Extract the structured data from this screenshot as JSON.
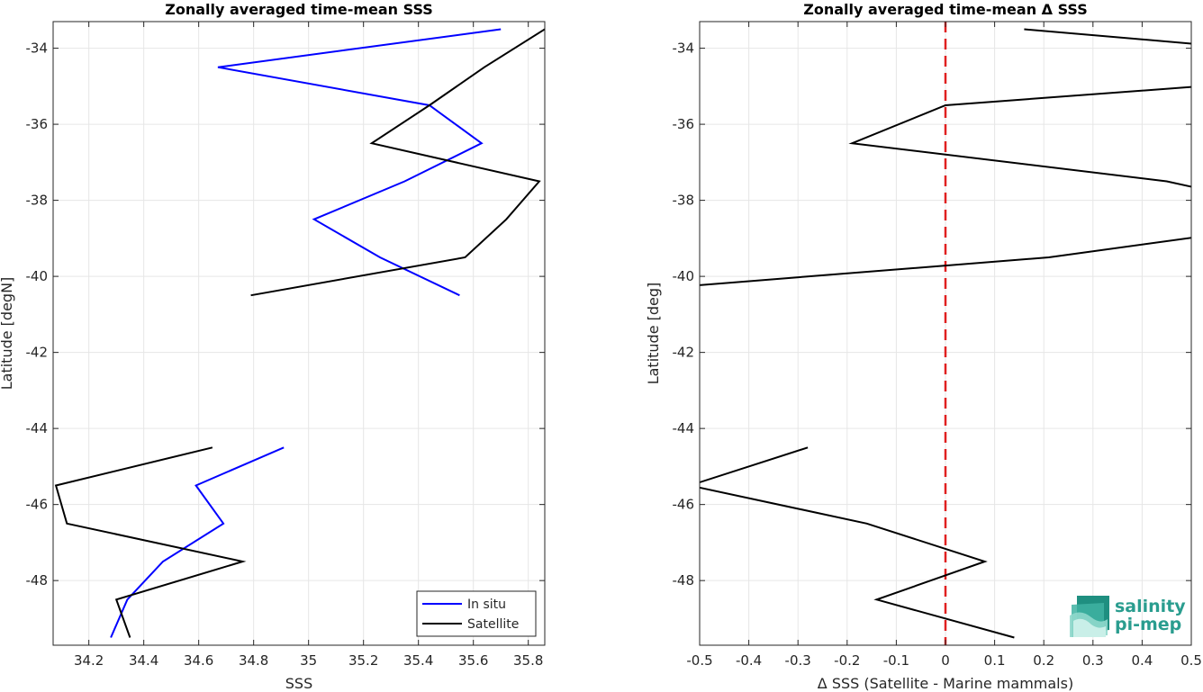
{
  "chart_data": [
    {
      "type": "line",
      "title": "Zonally averaged time-mean SSS",
      "xlabel": "SSS",
      "ylabel": "Latitude [degN]",
      "xlim": [
        34.07,
        35.86
      ],
      "ylim": [
        -49.7,
        -33.3
      ],
      "xticks": [
        "34.2",
        "34.4",
        "34.6",
        "34.8",
        "35",
        "35.2",
        "35.4",
        "35.6",
        "35.8"
      ],
      "yticks": [
        "-34",
        "-36",
        "-38",
        "-40",
        "-42",
        "-44",
        "-46",
        "-48"
      ],
      "grid": true,
      "legend_position": "bottom-right",
      "series": [
        {
          "name": "In situ",
          "color": "#0000ff",
          "segments": [
            [
              [
                35.7,
                -33.5
              ],
              [
                34.67,
                -34.5
              ],
              [
                35.44,
                -35.5
              ],
              [
                35.63,
                -36.5
              ],
              [
                35.35,
                -37.5
              ],
              [
                35.02,
                -38.5
              ],
              [
                35.26,
                -39.5
              ],
              [
                35.55,
                -40.5
              ]
            ],
            [
              [
                34.91,
                -44.5
              ],
              [
                34.59,
                -45.5
              ],
              [
                34.69,
                -46.5
              ],
              [
                34.47,
                -47.5
              ],
              [
                34.34,
                -48.5
              ],
              [
                34.28,
                -49.5
              ]
            ]
          ]
        },
        {
          "name": "Satellite",
          "color": "#000000",
          "segments": [
            [
              [
                35.86,
                -33.5
              ],
              [
                35.64,
                -34.5
              ],
              [
                35.44,
                -35.5
              ],
              [
                35.23,
                -36.5
              ],
              [
                35.84,
                -37.5
              ],
              [
                35.72,
                -38.5
              ],
              [
                35.57,
                -39.5
              ],
              [
                34.79,
                -40.5
              ]
            ],
            [
              [
                34.65,
                -44.5
              ],
              [
                34.08,
                -45.5
              ],
              [
                34.12,
                -46.5
              ],
              [
                34.76,
                -47.5
              ],
              [
                34.3,
                -48.5
              ],
              [
                34.35,
                -49.5
              ]
            ]
          ]
        }
      ]
    },
    {
      "type": "line",
      "title": "Zonally averaged time-mean Δ SSS",
      "xlabel": "Δ SSS (Satellite - Marine mammals)",
      "ylabel": "Latitude [deg]",
      "xlim": [
        -0.5,
        0.5
      ],
      "ylim": [
        -49.7,
        -33.3
      ],
      "xticks": [
        "-0.5",
        "-0.4",
        "-0.3",
        "-0.2",
        "-0.1",
        "0",
        "0.1",
        "0.2",
        "0.3",
        "0.4",
        "0.5"
      ],
      "yticks": [
        "-34",
        "-36",
        "-38",
        "-40",
        "-42",
        "-44",
        "-46",
        "-48"
      ],
      "grid": true,
      "reference_line": {
        "x": 0,
        "color": "#e02020",
        "style": "dashed"
      },
      "series": [
        {
          "color": "#000000",
          "segments": [
            [
              [
                0.16,
                -33.5
              ],
              [
                0.52,
                -33.9
              ]
            ],
            [
              [
                0.52,
                -35.0
              ],
              [
                0.0,
                -35.5
              ],
              [
                -0.19,
                -36.5
              ],
              [
                0.45,
                -37.5
              ],
              [
                0.52,
                -37.7
              ]
            ],
            [
              [
                0.52,
                -38.95
              ],
              [
                0.21,
                -39.5
              ],
              [
                -0.52,
                -40.25
              ]
            ],
            [
              [
                -0.28,
                -44.5
              ],
              [
                -0.52,
                -45.5
              ],
              [
                -0.16,
                -46.5
              ],
              [
                0.08,
                -47.5
              ],
              [
                -0.14,
                -48.5
              ],
              [
                0.14,
                -49.5
              ]
            ]
          ]
        }
      ]
    }
  ],
  "logo": {
    "line1": "salinity",
    "line2": "pi-mep"
  },
  "colors": {
    "grid": "#e6e6e6",
    "axis": "#262626"
  }
}
